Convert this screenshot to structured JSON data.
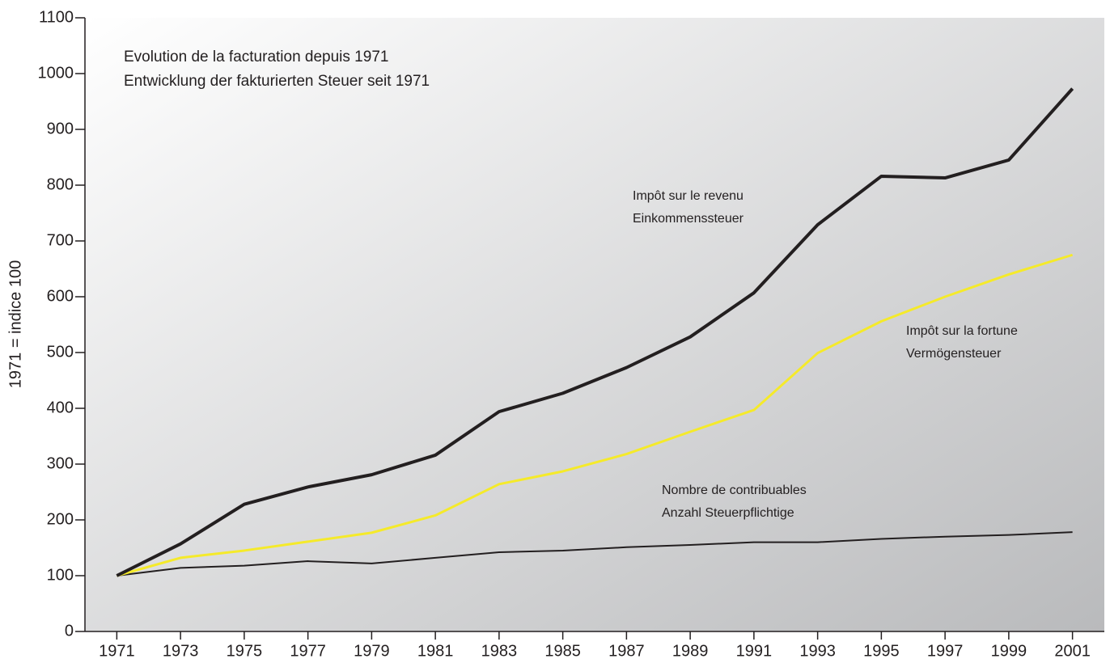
{
  "chart_data": {
    "type": "line",
    "title": "Evolution de la facturation depuis 1971",
    "subtitle": "Entwicklung der fakturierten Steuer seit 1971",
    "y_label": "1971 = indice 100",
    "x": [
      1971,
      1973,
      1975,
      1977,
      1979,
      1981,
      1983,
      1985,
      1987,
      1989,
      1991,
      1993,
      1995,
      1997,
      1999,
      2001
    ],
    "xlim": [
      1970,
      2002
    ],
    "xticks": [
      1971,
      1973,
      1975,
      1977,
      1979,
      1981,
      1983,
      1985,
      1987,
      1989,
      1991,
      1993,
      1995,
      1997,
      1999,
      2001
    ],
    "ylim": [
      0,
      1100
    ],
    "yticks": [
      0,
      100,
      200,
      300,
      400,
      500,
      600,
      700,
      800,
      900,
      1000,
      1100
    ],
    "series": [
      {
        "name": "Impôt sur le revenu",
        "subname": "Einkommenssteuer",
        "color": "#231f20",
        "values": [
          100,
          157,
          228,
          259,
          281,
          316,
          394,
          427,
          473,
          528,
          607,
          729,
          816,
          813,
          845,
          973
        ]
      },
      {
        "name": "Impôt sur la fortune",
        "subname": "Vermögensteuer",
        "color": "#f5ea2a",
        "values": [
          100,
          132,
          145,
          161,
          177,
          208,
          264,
          287,
          318,
          358,
          397,
          499,
          556,
          600,
          640,
          675
        ]
      },
      {
        "name": "Nombre de contribuables",
        "subname": "Anzahl Steuerpflichtige",
        "color": "#231f20",
        "values": [
          100,
          114,
          118,
          126,
          122,
          132,
          142,
          145,
          151,
          155,
          160,
          160,
          166,
          170,
          173,
          178
        ]
      }
    ]
  }
}
